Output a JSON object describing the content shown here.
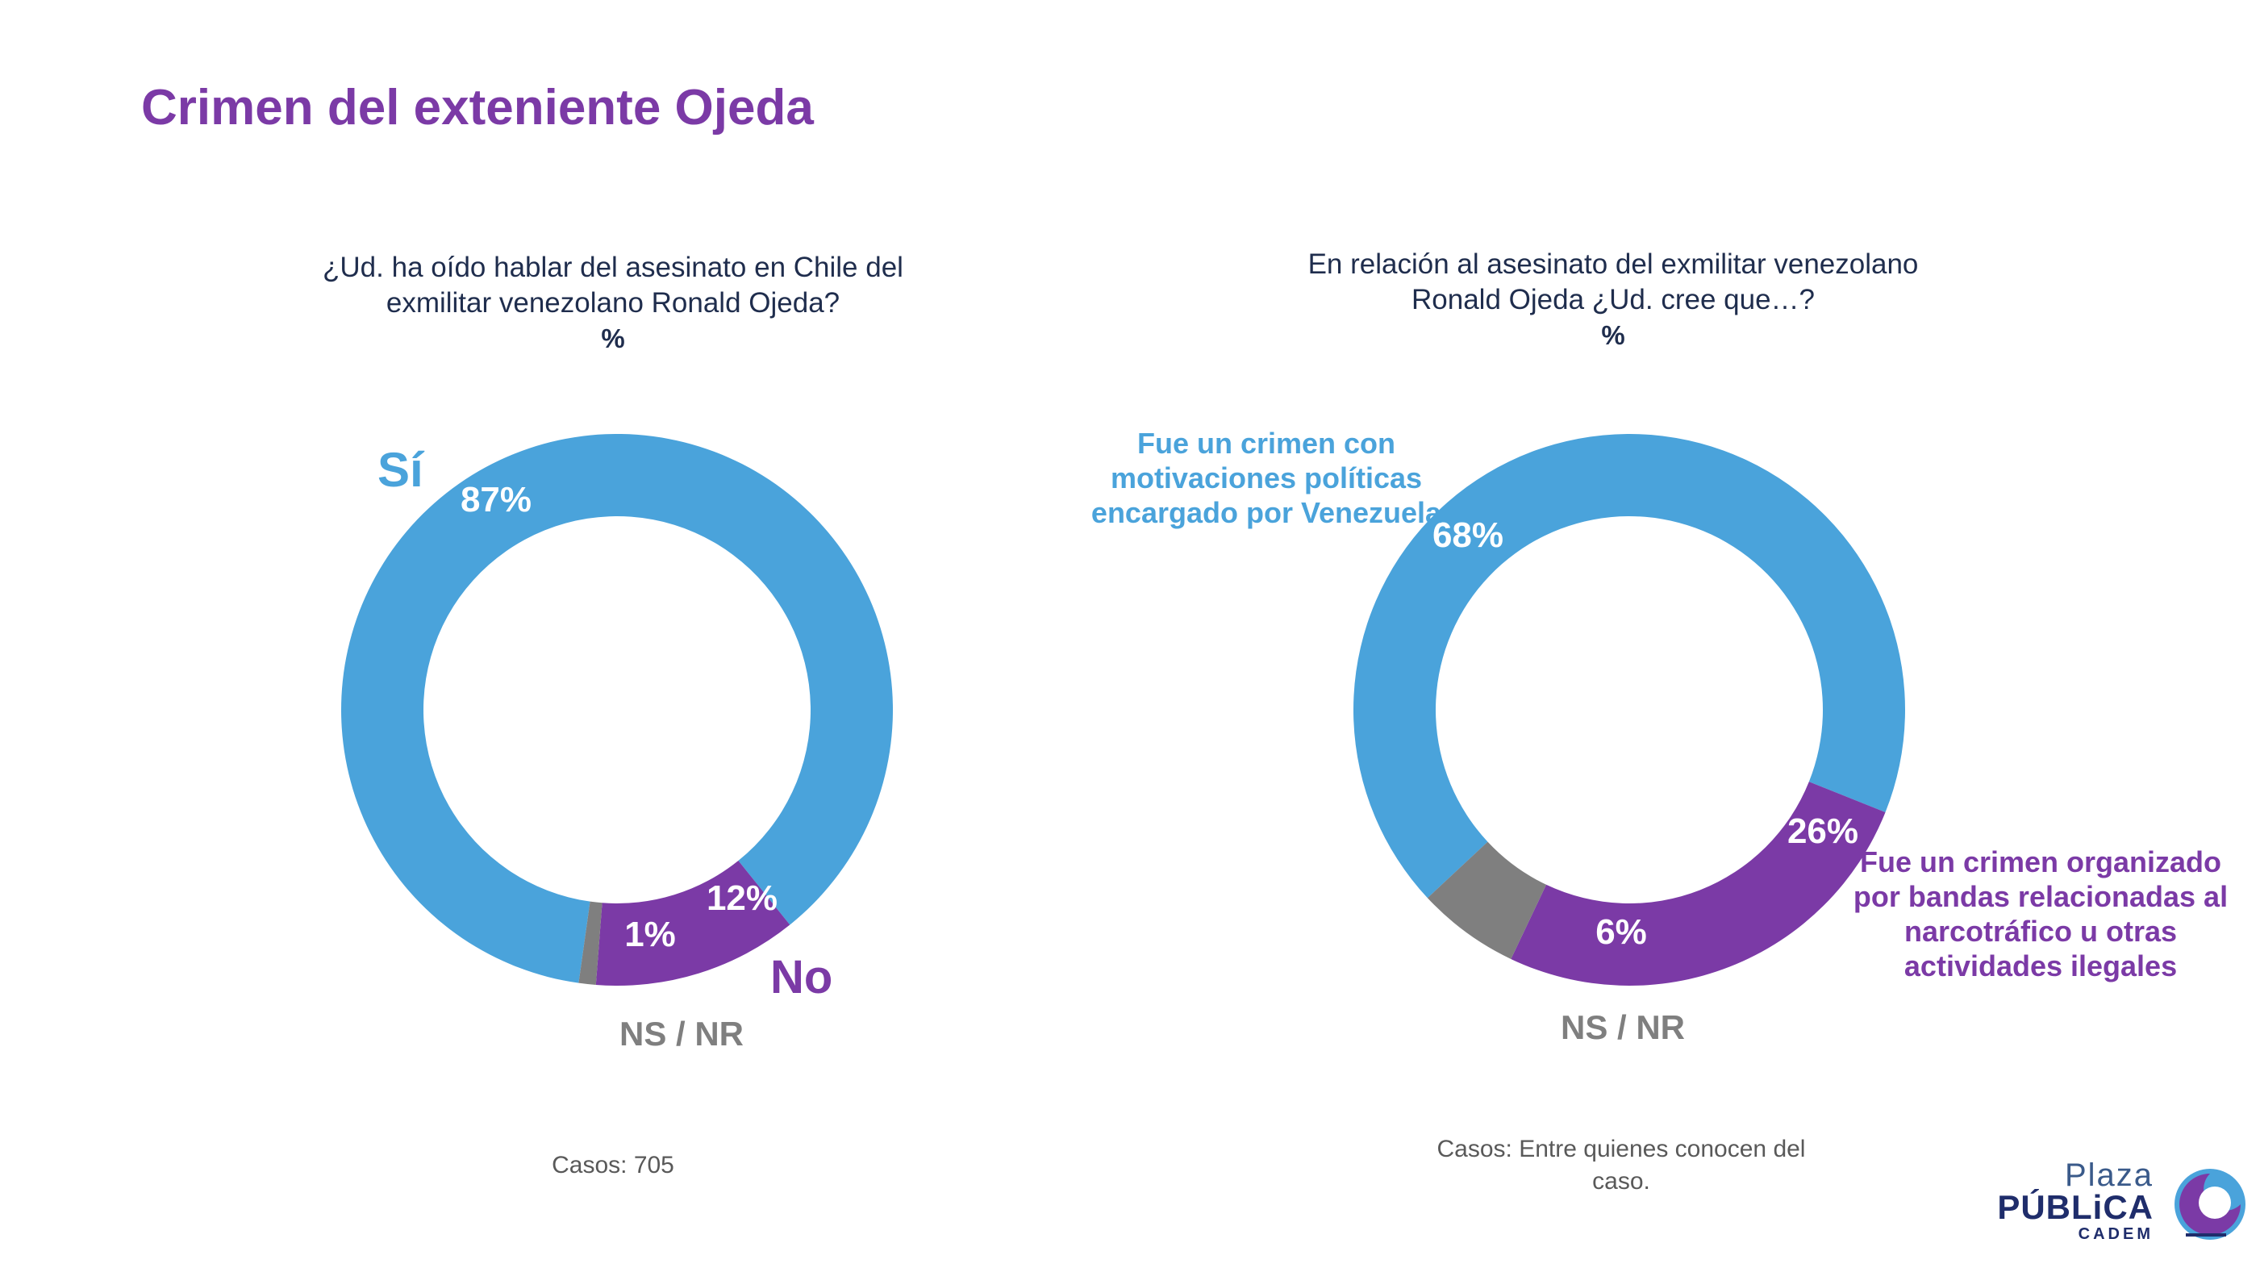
{
  "title": "Crimen del exteniente Ojeda",
  "colors": {
    "title": "#7B3AA6",
    "blue": "#4AA3DB",
    "purple": "#7B3AA6",
    "gray": "#7f7f7f"
  },
  "chart_data": [
    {
      "type": "pie",
      "donut": true,
      "question": "¿Ud. ha oído hablar del asesinato en Chile del exmilitar venezolano Ronald Ojeda?",
      "unit": "%",
      "categories": [
        "Sí",
        "No",
        "NS / NR"
      ],
      "values": [
        87,
        12,
        1
      ],
      "value_labels": [
        "87%",
        "12%",
        "1%"
      ],
      "colors": [
        "#4AA3DB",
        "#7B3AA6",
        "#7f7f7f"
      ],
      "cases": "Casos: 705"
    },
    {
      "type": "pie",
      "donut": true,
      "question": "En relación al asesinato del exmilitar venezolano Ronald Ojeda ¿Ud. cree que…?",
      "unit": "%",
      "categories": [
        "Fue un crimen con motivaciones políticas encargado por Venezuela",
        "Fue un crimen organizado por bandas relacionadas al narcotráfico u otras actividades ilegales",
        "NS / NR"
      ],
      "values": [
        68,
        26,
        6
      ],
      "value_labels": [
        "68%",
        "26%",
        "6%"
      ],
      "colors": [
        "#4AA3DB",
        "#7B3AA6",
        "#7f7f7f"
      ],
      "cases": "Casos: Entre quienes conocen del caso."
    }
  ],
  "labels": {
    "si": "Sí",
    "no": "No",
    "nsnr": "NS / NR",
    "political": "Fue un crimen con motivaciones políticas encargado por Venezuela",
    "organized": "Fue un crimen organizado por bandas relacionadas al narcotráfico u otras actividades ilegales"
  },
  "logo": {
    "line1": "Plaza",
    "line2": "PÚBLiCA",
    "line3": "CADEM"
  }
}
